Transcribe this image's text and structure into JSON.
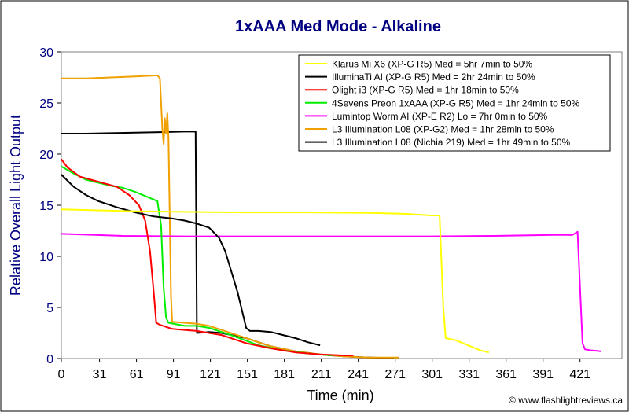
{
  "chart_data": {
    "type": "line",
    "title": "1xAAA Med Mode - Alkaline",
    "xlabel": "Time (min)",
    "ylabel": "Relative Overall Light Output",
    "xlim": [
      0,
      455
    ],
    "ylim": [
      0,
      30
    ],
    "x_ticks": [
      0,
      31,
      61,
      91,
      121,
      151,
      181,
      211,
      241,
      271,
      301,
      331,
      361,
      391,
      421
    ],
    "y_ticks": [
      0,
      5,
      10,
      15,
      20,
      25,
      30
    ],
    "grid": false,
    "legend_position": "top-right",
    "credit": "© www.flashlightreviews.ca",
    "series": [
      {
        "name": "Klarus Mi X6 (XP-G R5) Med = 5hr 7min to 50%",
        "color": "#ffff00",
        "points": [
          [
            0,
            14.6
          ],
          [
            30,
            14.5
          ],
          [
            60,
            14.4
          ],
          [
            100,
            14.35
          ],
          [
            150,
            14.3
          ],
          [
            200,
            14.3
          ],
          [
            250,
            14.25
          ],
          [
            280,
            14.15
          ],
          [
            300,
            14.0
          ],
          [
            307,
            14.0
          ],
          [
            310,
            5.0
          ],
          [
            312,
            2.0
          ],
          [
            320,
            1.8
          ],
          [
            330,
            1.3
          ],
          [
            340,
            0.8
          ],
          [
            347,
            0.6
          ]
        ]
      },
      {
        "name": "IlluminaTi AI (XP-G R5) Med = 2hr 24min to 50%",
        "color": "#000000",
        "points": [
          [
            0,
            18.0
          ],
          [
            10,
            16.8
          ],
          [
            20,
            16.0
          ],
          [
            30,
            15.4
          ],
          [
            45,
            14.8
          ],
          [
            60,
            14.3
          ],
          [
            75,
            13.9
          ],
          [
            90,
            13.7
          ],
          [
            100,
            13.5
          ],
          [
            110,
            13.2
          ],
          [
            120,
            12.8
          ],
          [
            128,
            11.8
          ],
          [
            133,
            10.5
          ],
          [
            138,
            8.5
          ],
          [
            143,
            6.5
          ],
          [
            147,
            4.5
          ],
          [
            150,
            3.0
          ],
          [
            153,
            2.7
          ],
          [
            160,
            2.7
          ],
          [
            170,
            2.6
          ],
          [
            180,
            2.3
          ],
          [
            190,
            2.0
          ],
          [
            200,
            1.6
          ],
          [
            210,
            1.3
          ]
        ]
      },
      {
        "name": "Olight i3 (XP-G R5) Med = 1hr 18min to 50%",
        "color": "#ff0000",
        "points": [
          [
            0,
            19.5
          ],
          [
            5,
            18.7
          ],
          [
            15,
            17.8
          ],
          [
            30,
            17.3
          ],
          [
            45,
            16.8
          ],
          [
            55,
            16.0
          ],
          [
            63,
            15.0
          ],
          [
            68,
            13.5
          ],
          [
            72,
            10.5
          ],
          [
            75,
            6.5
          ],
          [
            77,
            3.5
          ],
          [
            80,
            3.3
          ],
          [
            90,
            2.9
          ],
          [
            100,
            2.8
          ],
          [
            110,
            2.7
          ],
          [
            130,
            2.3
          ],
          [
            150,
            1.5
          ],
          [
            170,
            1.0
          ],
          [
            190,
            0.6
          ],
          [
            210,
            0.4
          ],
          [
            230,
            0.3
          ],
          [
            237,
            0.3
          ]
        ]
      },
      {
        "name": "4Sevens Preon 1xAAA (XP-G R5) Med = 1hr 24min to 50%",
        "color": "#00ee00",
        "points": [
          [
            0,
            18.8
          ],
          [
            10,
            18.1
          ],
          [
            20,
            17.5
          ],
          [
            30,
            17.2
          ],
          [
            40,
            16.9
          ],
          [
            50,
            16.7
          ],
          [
            60,
            16.3
          ],
          [
            70,
            15.8
          ],
          [
            78,
            15.4
          ],
          [
            81,
            13.0
          ],
          [
            83,
            7.0
          ],
          [
            85,
            4.0
          ],
          [
            87,
            3.5
          ],
          [
            100,
            3.2
          ],
          [
            110,
            3.2
          ],
          [
            120,
            3.0
          ],
          [
            140,
            2.2
          ],
          [
            160,
            1.3
          ],
          [
            180,
            0.8
          ],
          [
            200,
            0.5
          ],
          [
            220,
            0.3
          ]
        ]
      },
      {
        "name": "Lumintop Worm AI (XP-E R2) Lo = 7hr 0min to 50%",
        "color": "#ff00ff",
        "points": [
          [
            0,
            12.2
          ],
          [
            50,
            12.0
          ],
          [
            100,
            11.95
          ],
          [
            150,
            11.95
          ],
          [
            200,
            11.95
          ],
          [
            250,
            11.95
          ],
          [
            300,
            11.95
          ],
          [
            350,
            12.0
          ],
          [
            400,
            12.1
          ],
          [
            415,
            12.1
          ],
          [
            419,
            12.4
          ],
          [
            421,
            7.0
          ],
          [
            423,
            1.5
          ],
          [
            425,
            0.9
          ],
          [
            430,
            0.8
          ],
          [
            435,
            0.75
          ],
          [
            438,
            0.7
          ]
        ]
      },
      {
        "name": "L3 Illumination L08 (XP-G2) Med = 1hr 28min to 50%",
        "color": "#f0a000",
        "points": [
          [
            0,
            27.4
          ],
          [
            20,
            27.4
          ],
          [
            40,
            27.5
          ],
          [
            60,
            27.6
          ],
          [
            78,
            27.7
          ],
          [
            80,
            27.4
          ],
          [
            81,
            25.0
          ],
          [
            82,
            22.5
          ],
          [
            83,
            21.0
          ],
          [
            84,
            23.5
          ],
          [
            85,
            22.0
          ],
          [
            86,
            24.0
          ],
          [
            87,
            21.5
          ],
          [
            89,
            6.0
          ],
          [
            90,
            3.6
          ],
          [
            100,
            3.5
          ],
          [
            110,
            3.4
          ],
          [
            120,
            3.2
          ],
          [
            130,
            2.8
          ],
          [
            140,
            2.4
          ],
          [
            150,
            2.0
          ],
          [
            170,
            1.2
          ],
          [
            190,
            0.7
          ],
          [
            210,
            0.4
          ],
          [
            230,
            0.2
          ],
          [
            250,
            0.1
          ],
          [
            270,
            0.1
          ],
          [
            274,
            0.1
          ]
        ]
      },
      {
        "name": "L3 Illumination L08 (Nichia 219) Med = 1hr 49min to 50%",
        "color": "#000000",
        "points": [
          [
            0,
            22.0
          ],
          [
            20,
            22.0
          ],
          [
            40,
            22.05
          ],
          [
            60,
            22.1
          ],
          [
            80,
            22.15
          ],
          [
            100,
            22.2
          ],
          [
            109,
            22.2
          ],
          [
            110,
            2.5
          ],
          [
            120,
            2.6
          ],
          [
            130,
            2.5
          ],
          [
            150,
            2.0
          ],
          [
            170,
            1.2
          ],
          [
            190,
            0.7
          ],
          [
            210,
            0.4
          ],
          [
            230,
            0.2
          ],
          [
            250,
            0.1
          ],
          [
            270,
            0.05
          ]
        ]
      }
    ]
  }
}
